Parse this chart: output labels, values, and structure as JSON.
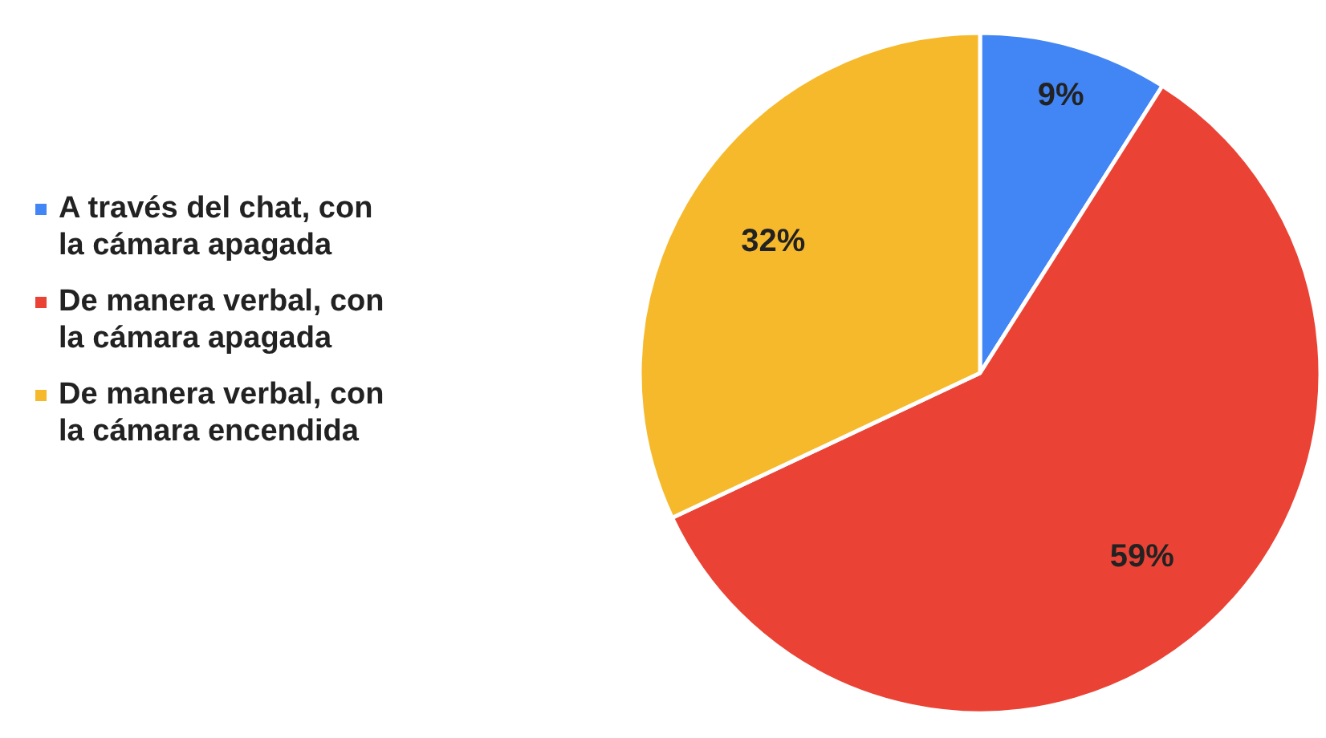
{
  "chart_data": {
    "type": "pie",
    "categories": [
      "A través del chat, con la cámara apagada",
      "De manera verbal, con la cámara apagada",
      "De manera verbal, con la cámara encendida"
    ],
    "values": [
      9,
      59,
      32
    ],
    "colors": [
      "#4285f4",
      "#ea4335",
      "#f6b92b"
    ],
    "value_labels": [
      "9%",
      "59%",
      "32%"
    ],
    "legend": "left"
  }
}
